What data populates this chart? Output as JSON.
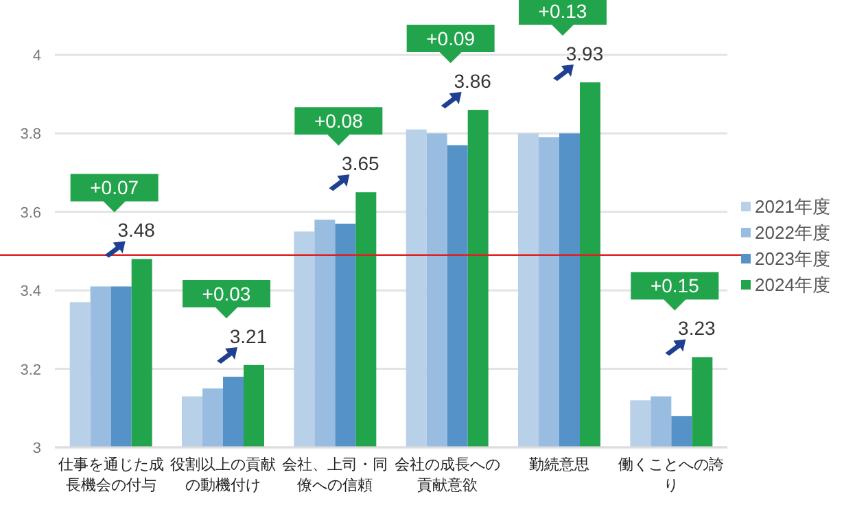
{
  "chart_data": {
    "type": "bar",
    "categories": [
      "仕事を通じた成長機会の付与",
      "役割以上の貢献の動機付け",
      "会社、上司・同僚への信頼",
      "会社の成長への貢献意欲",
      "勤続意思",
      "働くことへの誇り"
    ],
    "series": [
      {
        "name": "2021年度",
        "color": "#b8d1e8",
        "values": [
          3.37,
          3.13,
          3.55,
          3.81,
          3.8,
          3.12
        ]
      },
      {
        "name": "2022年度",
        "color": "#99bde0",
        "values": [
          3.41,
          3.15,
          3.58,
          3.8,
          3.79,
          3.13
        ]
      },
      {
        "name": "2023年度",
        "color": "#5592c8",
        "values": [
          3.41,
          3.18,
          3.57,
          3.77,
          3.8,
          3.08
        ]
      },
      {
        "name": "2024年度",
        "color": "#22a44c",
        "values": [
          3.48,
          3.21,
          3.65,
          3.86,
          3.93,
          3.23
        ],
        "value_labels": [
          "3.48",
          "3.21",
          "3.65",
          "3.86",
          "3.93",
          "3.23"
        ]
      }
    ],
    "ylim": [
      3,
      4
    ],
    "yticks": [
      3,
      3.2,
      3.4,
      3.6,
      3.8,
      4
    ],
    "grid": "y",
    "legend": "right",
    "ref_lines": [
      {
        "axis": "y",
        "value": 3.49,
        "color": "#e02020"
      }
    ],
    "annotations": [
      "+0.07",
      "+0.03",
      "+0.08",
      "+0.09",
      "+0.13",
      "+0.15"
    ]
  }
}
